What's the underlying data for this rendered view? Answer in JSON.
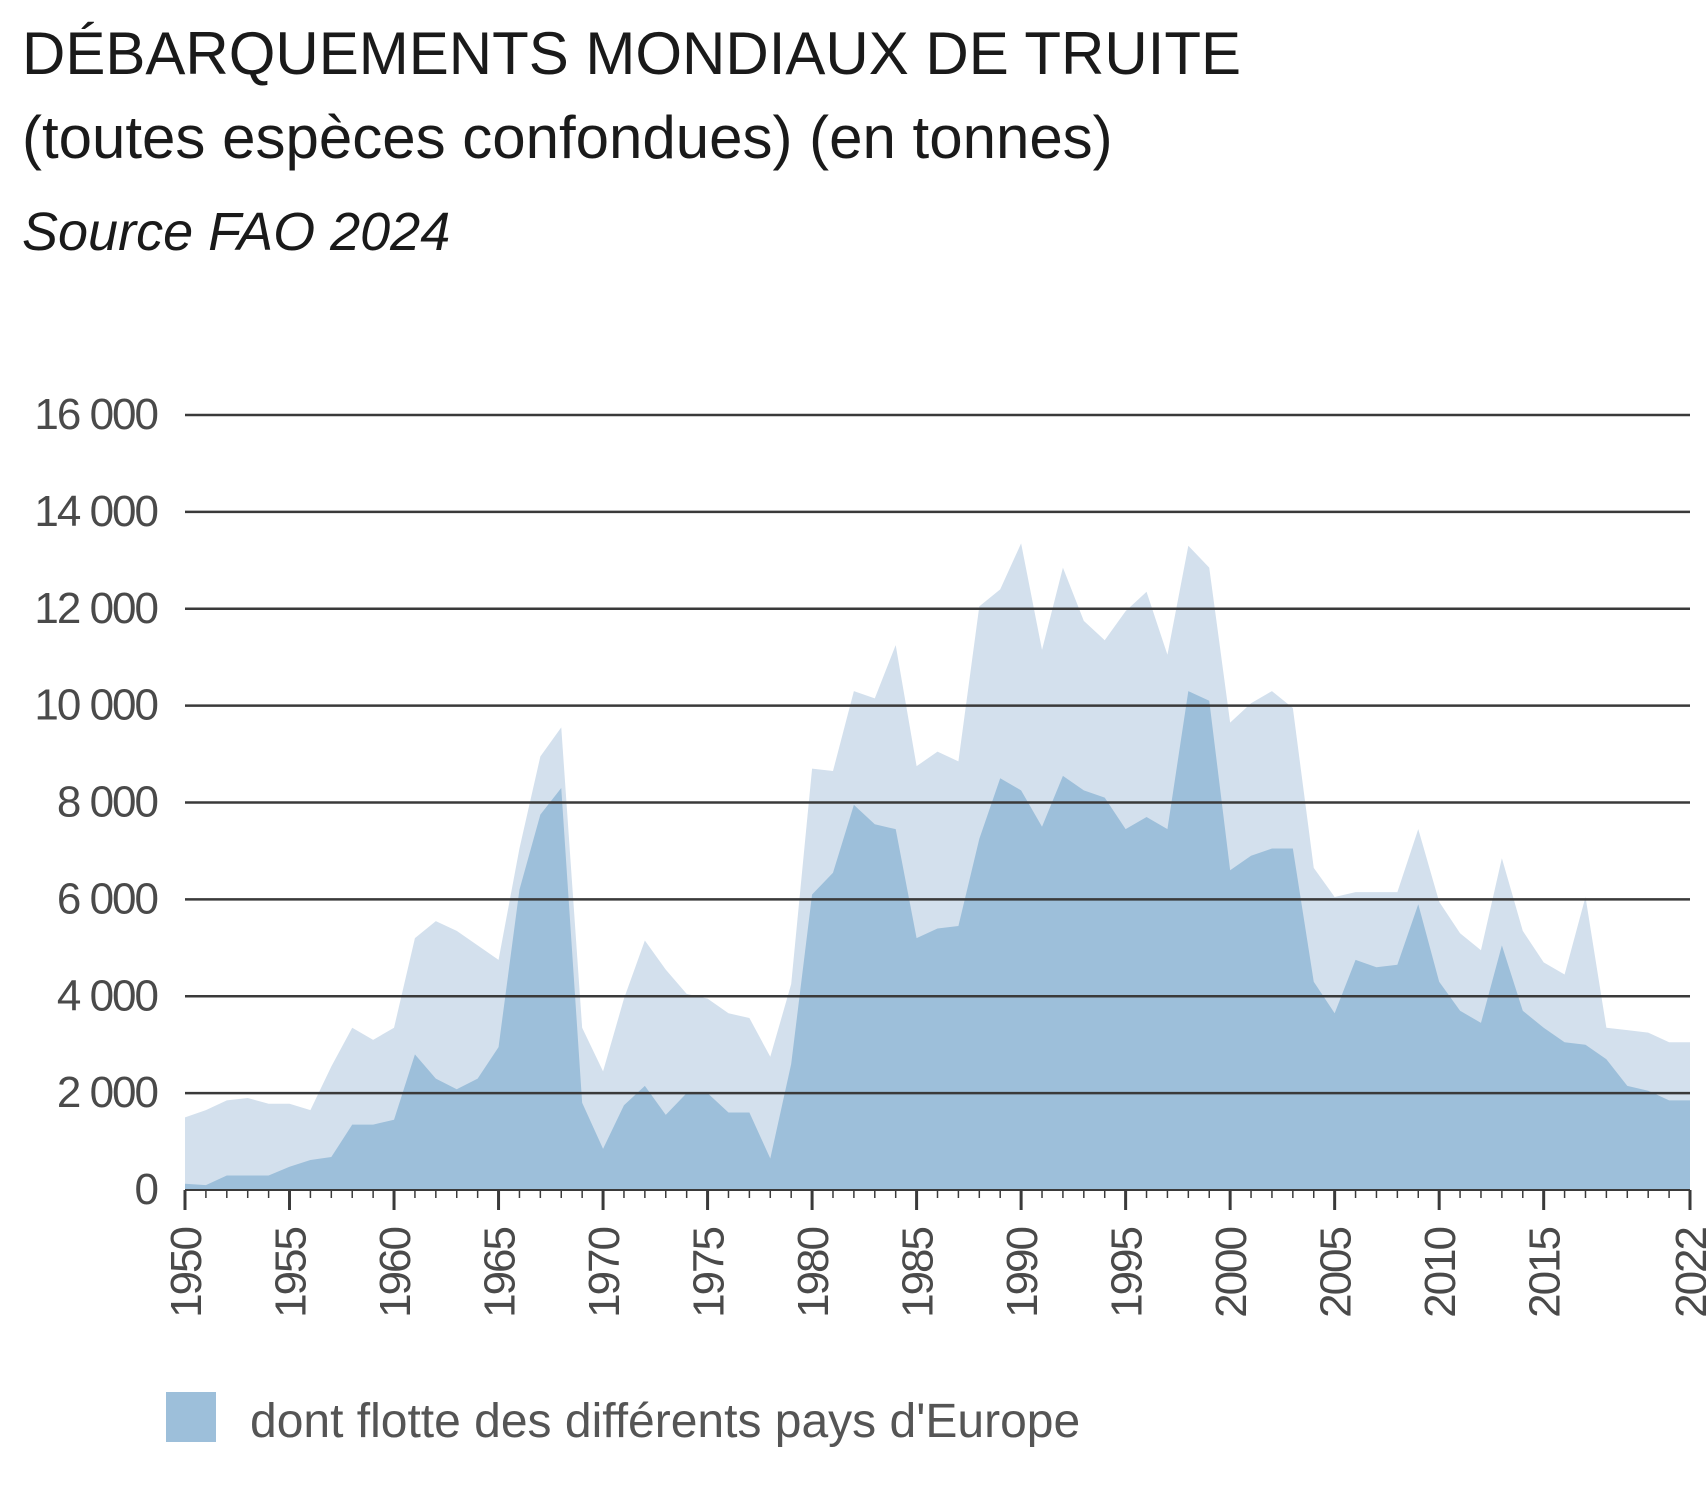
{
  "title_line1": "DÉBARQUEMENTS MONDIAUX DE TRUITE",
  "title_line2": "(toutes espèces confondues) (en tonnes)",
  "source": "Source FAO 2024",
  "colors": {
    "total": "#d3e0ed",
    "europe": "#9dbfda",
    "grid": "#3a3a3a",
    "title": "#1a1a1a",
    "ticks": "#4a4a4a"
  },
  "chart_data": {
    "type": "area",
    "title": "DÉBARQUEMENTS MONDIAUX DE TRUITE (toutes espèces confondues) (en tonnes)",
    "subtitle": "Source FAO 2024",
    "xlabel": "",
    "ylabel": "",
    "xlim": [
      1950,
      2022
    ],
    "ylim": [
      0,
      16000
    ],
    "grid": true,
    "legend_position": "bottom-left",
    "y_ticks": [
      0,
      2000,
      4000,
      6000,
      8000,
      10000,
      12000,
      14000,
      16000
    ],
    "y_tick_labels": [
      "0",
      "2 000",
      "4 000",
      "6 000",
      "8 000",
      "10 000",
      "12 000",
      "14 000",
      "16 000"
    ],
    "x_ticks": [
      1950,
      1955,
      1960,
      1965,
      1970,
      1975,
      1980,
      1985,
      1990,
      1995,
      2000,
      2005,
      2010,
      2015,
      2022
    ],
    "x_tick_labels": [
      "1950",
      "1955",
      "1960",
      "1965",
      "1970",
      "1975",
      "1980",
      "1985",
      "1990",
      "1995",
      "2000",
      "2005",
      "2010",
      "2015",
      "2022"
    ],
    "x": [
      1950,
      1951,
      1952,
      1953,
      1954,
      1955,
      1956,
      1957,
      1958,
      1959,
      1960,
      1961,
      1962,
      1963,
      1964,
      1965,
      1966,
      1967,
      1968,
      1969,
      1970,
      1971,
      1972,
      1973,
      1974,
      1975,
      1976,
      1977,
      1978,
      1979,
      1980,
      1981,
      1982,
      1983,
      1984,
      1985,
      1986,
      1987,
      1988,
      1989,
      1990,
      1991,
      1992,
      1993,
      1994,
      1995,
      1996,
      1997,
      1998,
      1999,
      2000,
      2001,
      2002,
      2003,
      2004,
      2005,
      2006,
      2007,
      2008,
      2009,
      2010,
      2011,
      2012,
      2013,
      2014,
      2015,
      2016,
      2017,
      2018,
      2019,
      2020,
      2021,
      2022
    ],
    "series": [
      {
        "values": [
          1500,
          1650,
          1850,
          1900,
          1780,
          1780,
          1650,
          2550,
          3350,
          3100,
          3350,
          5200,
          5550,
          5350,
          5050,
          4750,
          7050,
          8950,
          9550,
          3350,
          2450,
          3950,
          5150,
          4550,
          4050,
          3950,
          3650,
          3550,
          2750,
          4250,
          8700,
          8650,
          10300,
          10150,
          11250,
          8750,
          9050,
          8850,
          12050,
          12400,
          13350,
          11150,
          12850,
          11750,
          11350,
          11950,
          12350,
          11050,
          13300,
          12850,
          9650,
          10050,
          10300,
          9950,
          6650,
          6050,
          6150,
          6150,
          6150,
          7450,
          5950,
          5300,
          4950,
          6850,
          5350,
          4700,
          4450,
          6050,
          3350,
          3300,
          3250,
          3050,
          3050
        ]
      },
      {
        "name": "dont flotte des différents pays d'Europe",
        "values": [
          130,
          100,
          300,
          300,
          300,
          480,
          620,
          680,
          1350,
          1350,
          1450,
          2800,
          2300,
          2080,
          2300,
          2950,
          6200,
          7750,
          8300,
          1800,
          850,
          1750,
          2150,
          1550,
          2000,
          2000,
          1600,
          1600,
          650,
          2600,
          6100,
          6550,
          7950,
          7550,
          7450,
          5200,
          5400,
          5450,
          7250,
          8500,
          8250,
          7500,
          8550,
          8250,
          8100,
          7450,
          7700,
          7450,
          10300,
          10100,
          6600,
          6900,
          7050,
          7050,
          4300,
          3650,
          4750,
          4600,
          4650,
          5900,
          4300,
          3700,
          3450,
          5050,
          3700,
          3350,
          3050,
          3000,
          2700,
          2150,
          2050,
          1850,
          1850
        ]
      }
    ],
    "legend": [
      "dont flotte des différents pays d'Europe"
    ]
  }
}
